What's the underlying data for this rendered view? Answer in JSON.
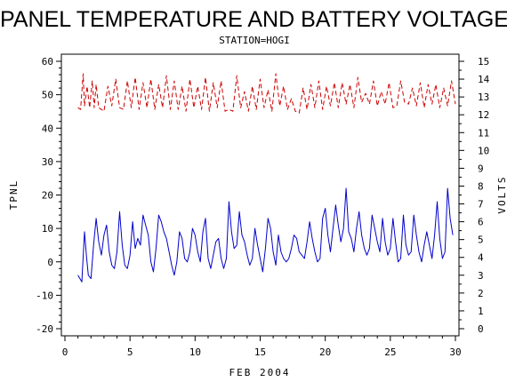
{
  "chart_data": {
    "type": "line",
    "title": "PANEL TEMPERATURE AND BATTERY VOLTAGE",
    "subtitle": "STATION=HOGI",
    "xlabel": "FEB 2004",
    "ylabel_left": "TPNL",
    "ylabel_right": "VOLTS",
    "xlim": [
      0,
      30
    ],
    "xticks": [
      0,
      5,
      10,
      15,
      20,
      25,
      30
    ],
    "ylim_left": [
      -20,
      60
    ],
    "yticks_left": [
      -20,
      -10,
      0,
      10,
      20,
      30,
      40,
      50,
      60
    ],
    "ylim_right": [
      0,
      15
    ],
    "yticks_right": [
      0,
      1,
      2,
      3,
      4,
      5,
      6,
      7,
      8,
      9,
      10,
      11,
      12,
      13,
      14,
      15
    ],
    "grid": false,
    "legend": "none",
    "series": [
      {
        "axis": "left",
        "color": "#0000cc",
        "dash": "solid",
        "x": [
          1.0,
          1.3,
          1.5,
          1.65,
          1.8,
          2.0,
          2.2,
          2.4,
          2.6,
          2.8,
          3.0,
          3.2,
          3.4,
          3.6,
          3.8,
          4.0,
          4.2,
          4.4,
          4.6,
          4.8,
          5.0,
          5.2,
          5.4,
          5.6,
          5.8,
          6.0,
          6.2,
          6.4,
          6.6,
          6.8,
          7.0,
          7.2,
          7.4,
          7.6,
          7.8,
          8.0,
          8.2,
          8.4,
          8.6,
          8.8,
          9.0,
          9.2,
          9.4,
          9.6,
          9.8,
          10.0,
          10.2,
          10.4,
          10.6,
          10.8,
          11.0,
          11.2,
          11.4,
          11.6,
          11.8,
          12.0,
          12.2,
          12.4,
          12.6,
          12.8,
          13.0,
          13.2,
          13.4,
          13.6,
          13.8,
          14.0,
          14.2,
          14.4,
          14.6,
          14.8,
          15.0,
          15.2,
          15.4,
          15.6,
          15.8,
          16.0,
          16.2,
          16.4,
          16.6,
          16.8,
          17.0,
          17.2,
          17.4,
          17.6,
          17.8,
          18.0,
          18.2,
          18.4,
          18.6,
          18.8,
          19.0,
          19.2,
          19.4,
          19.6,
          19.8,
          20.0,
          20.2,
          20.4,
          20.6,
          20.8,
          21.0,
          21.2,
          21.4,
          21.6,
          21.8,
          22.0,
          22.2,
          22.4,
          22.6,
          22.8,
          23.0,
          23.2,
          23.4,
          23.6,
          23.8,
          24.0,
          24.2,
          24.4,
          24.6,
          24.8,
          25.0,
          25.2,
          25.4,
          25.6,
          25.8,
          26.0,
          26.2,
          26.4,
          26.6,
          26.8,
          27.0,
          27.2,
          27.4,
          27.6,
          27.8,
          28.0,
          28.2,
          28.4,
          28.6,
          28.8,
          29.0,
          29.2,
          29.4,
          29.6,
          29.8
        ],
        "y": [
          -4,
          -6,
          9,
          2,
          -4,
          -5,
          5,
          13,
          6,
          2,
          8,
          11,
          3,
          -1,
          -2,
          3,
          15,
          5,
          -1,
          -2,
          2,
          12,
          4,
          7,
          5,
          14,
          11,
          8,
          0,
          -3,
          4,
          14,
          12,
          9,
          7,
          3,
          -1,
          -4,
          0,
          9,
          7,
          1,
          0,
          3,
          10,
          8,
          3,
          0,
          9,
          13,
          1,
          -2,
          2,
          6,
          7,
          1,
          -2,
          1,
          18,
          9,
          4,
          5,
          15,
          8,
          6,
          2,
          -1,
          1,
          10,
          5,
          1,
          -3,
          4,
          13,
          10,
          3,
          -1,
          8,
          3,
          1,
          0,
          1,
          4,
          8,
          7,
          3,
          2,
          1,
          6,
          12,
          7,
          3,
          0,
          1,
          13,
          16,
          8,
          3,
          10,
          17,
          11,
          6,
          10,
          22,
          9,
          7,
          3,
          10,
          15,
          8,
          4,
          2,
          4,
          14,
          10,
          6,
          3,
          13,
          6,
          2,
          4,
          13,
          6,
          0,
          1,
          14,
          5,
          2,
          3,
          14,
          8,
          3,
          0,
          5,
          9,
          5,
          1,
          8,
          18,
          7,
          1,
          3,
          22,
          13,
          8
        ]
      },
      {
        "axis": "right",
        "color": "#cc0000",
        "dash": "dashed",
        "x": [
          1.0,
          1.2,
          1.4,
          1.5,
          1.7,
          1.9,
          2.1,
          2.25,
          2.4,
          2.6,
          2.8,
          3.0,
          3.3,
          3.6,
          3.9,
          4.2,
          4.5,
          4.8,
          5.1,
          5.4,
          5.7,
          6.0,
          6.3,
          6.6,
          6.9,
          7.2,
          7.5,
          7.8,
          8.1,
          8.4,
          8.7,
          9.0,
          9.3,
          9.6,
          9.9,
          10.2,
          10.5,
          10.8,
          11.1,
          11.4,
          11.7,
          12.0,
          12.3,
          12.6,
          12.9,
          13.2,
          13.5,
          13.8,
          14.1,
          14.4,
          14.7,
          15.0,
          15.3,
          15.6,
          15.9,
          16.2,
          16.5,
          16.8,
          17.1,
          17.4,
          17.7,
          18.0,
          18.3,
          18.6,
          18.9,
          19.2,
          19.5,
          19.8,
          20.1,
          20.4,
          20.7,
          21.0,
          21.3,
          21.6,
          21.9,
          22.2,
          22.5,
          22.8,
          23.1,
          23.4,
          23.7,
          24.0,
          24.3,
          24.6,
          24.9,
          25.2,
          25.5,
          25.8,
          26.1,
          26.4,
          26.7,
          27.0,
          27.3,
          27.6,
          27.9,
          28.2,
          28.5,
          28.8,
          29.1,
          29.4,
          29.7,
          30.0
        ],
        "y": [
          12.4,
          12.3,
          14.3,
          12.5,
          13.6,
          12.4,
          13.9,
          12.4,
          13.7,
          12.4,
          12.3,
          12.2,
          13.6,
          12.5,
          14.0,
          12.4,
          12.3,
          13.9,
          12.4,
          14.1,
          12.3,
          13.8,
          12.4,
          14.0,
          12.3,
          13.7,
          12.4,
          14.2,
          12.3,
          13.9,
          12.3,
          13.6,
          12.2,
          14.0,
          12.4,
          13.6,
          12.3,
          14.1,
          12.2,
          13.8,
          12.4,
          13.9,
          12.2,
          12.3,
          12.2,
          14.2,
          12.4,
          13.3,
          12.2,
          13.6,
          12.3,
          14.0,
          12.4,
          13.4,
          12.2,
          14.3,
          12.5,
          13.6,
          12.3,
          12.9,
          12.2,
          12.1,
          13.5,
          12.3,
          13.7,
          12.4,
          13.9,
          12.3,
          13.6,
          12.5,
          13.8,
          12.4,
          13.8,
          12.6,
          13.7,
          12.4,
          14.1,
          12.7,
          13.2,
          12.6,
          13.9,
          12.5,
          13.3,
          12.6,
          13.8,
          12.4,
          12.5,
          13.9,
          12.7,
          12.6,
          13.5,
          12.5,
          13.8,
          12.4,
          13.7,
          12.6,
          13.7,
          12.4,
          13.5,
          12.5,
          13.9,
          12.6
        ]
      }
    ]
  }
}
